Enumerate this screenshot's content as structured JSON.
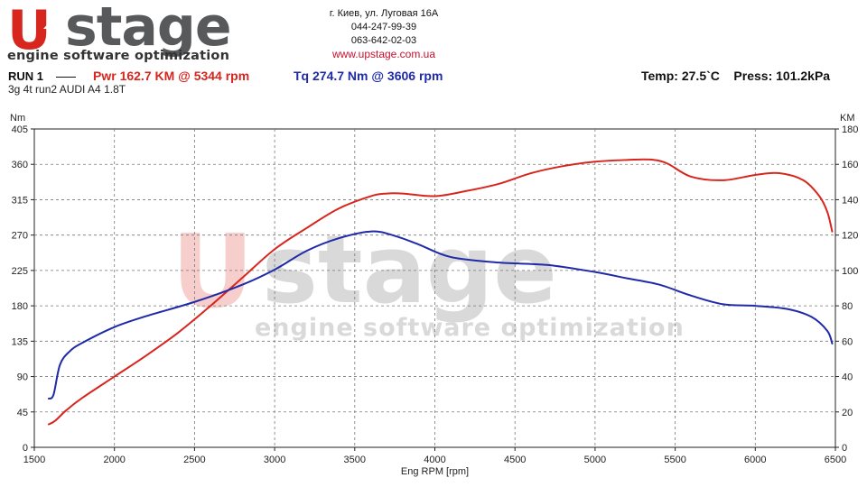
{
  "header": {
    "logo_u": "U",
    "logo_word": "stage",
    "logo_tagline": "engine software optimization",
    "address": "г. Киев, ул. Луговая 16А",
    "phone1": "044-247-99-39",
    "phone2": "063-642-02-03",
    "website": "www.upstage.com.ua",
    "run_label": "RUN 1",
    "power_summary": "Pwr  162.7 KM @ 5344 rpm",
    "torque_summary": "Tq 274.7 Nm @ 3606 rpm",
    "conditions": "Temp: 27.5`C    Press: 101.2kPa",
    "run_description": "3g 4t run2 AUDI A4 1.8T"
  },
  "watermark": {
    "word": "stage",
    "tagline": "engine software optimization"
  },
  "colors": {
    "power": "#d7261e",
    "torque": "#1f2aa8",
    "brand_red": "#d7261e",
    "brand_grey": "#58595b"
  },
  "chart_data": {
    "type": "line",
    "xlabel": "Eng RPM [rpm]",
    "ylabel_left": "Nm",
    "ylabel_right": "KM",
    "xlim": [
      1500,
      6500
    ],
    "ylim_left": [
      0,
      405
    ],
    "ylim_right": [
      0,
      180
    ],
    "x_ticks": [
      "1500",
      "2000",
      "2500",
      "3000",
      "3500",
      "4000",
      "4500",
      "5000",
      "5500",
      "6000",
      "6500"
    ],
    "y_ticks_left": [
      "0",
      "45",
      "90",
      "135",
      "180",
      "225",
      "270",
      "315",
      "360",
      "405"
    ],
    "y_ticks_right": [
      "0",
      "20",
      "40",
      "60",
      "80",
      "100",
      "120",
      "140",
      "160",
      "180"
    ],
    "grid": true,
    "series": [
      {
        "name": "Pwr",
        "axis": "right",
        "color": "#d7261e",
        "x": [
          1590,
          1630,
          1700,
          1800,
          2000,
          2200,
          2400,
          2600,
          2800,
          3000,
          3200,
          3400,
          3600,
          3700,
          3800,
          4000,
          4200,
          4400,
          4600,
          4800,
          5000,
          5200,
          5344,
          5450,
          5600,
          5800,
          6000,
          6150,
          6300,
          6400,
          6450,
          6480
        ],
        "values": [
          13,
          15,
          21,
          28,
          40,
          52,
          65,
          80,
          96,
          112,
          124,
          135,
          142,
          143.5,
          143.5,
          142,
          145,
          149,
          155,
          159,
          161.5,
          162.5,
          162.7,
          160.5,
          153,
          151,
          154,
          155,
          151,
          142,
          133,
          122
        ]
      },
      {
        "name": "Tq",
        "axis": "left",
        "color": "#1f2aa8",
        "x": [
          1590,
          1620,
          1660,
          1720,
          1800,
          2000,
          2200,
          2500,
          2800,
          3000,
          3200,
          3400,
          3606,
          3750,
          3900,
          4100,
          4400,
          4700,
          5000,
          5200,
          5400,
          5600,
          5800,
          6000,
          6200,
          6350,
          6450,
          6480
        ],
        "values": [
          62,
          67,
          105,
          122,
          133,
          153,
          167,
          185,
          207,
          226,
          250,
          266,
          274.7,
          269,
          258,
          242,
          235,
          232,
          223,
          215,
          207,
          193,
          182,
          180,
          176,
          166,
          148,
          132
        ]
      }
    ]
  }
}
